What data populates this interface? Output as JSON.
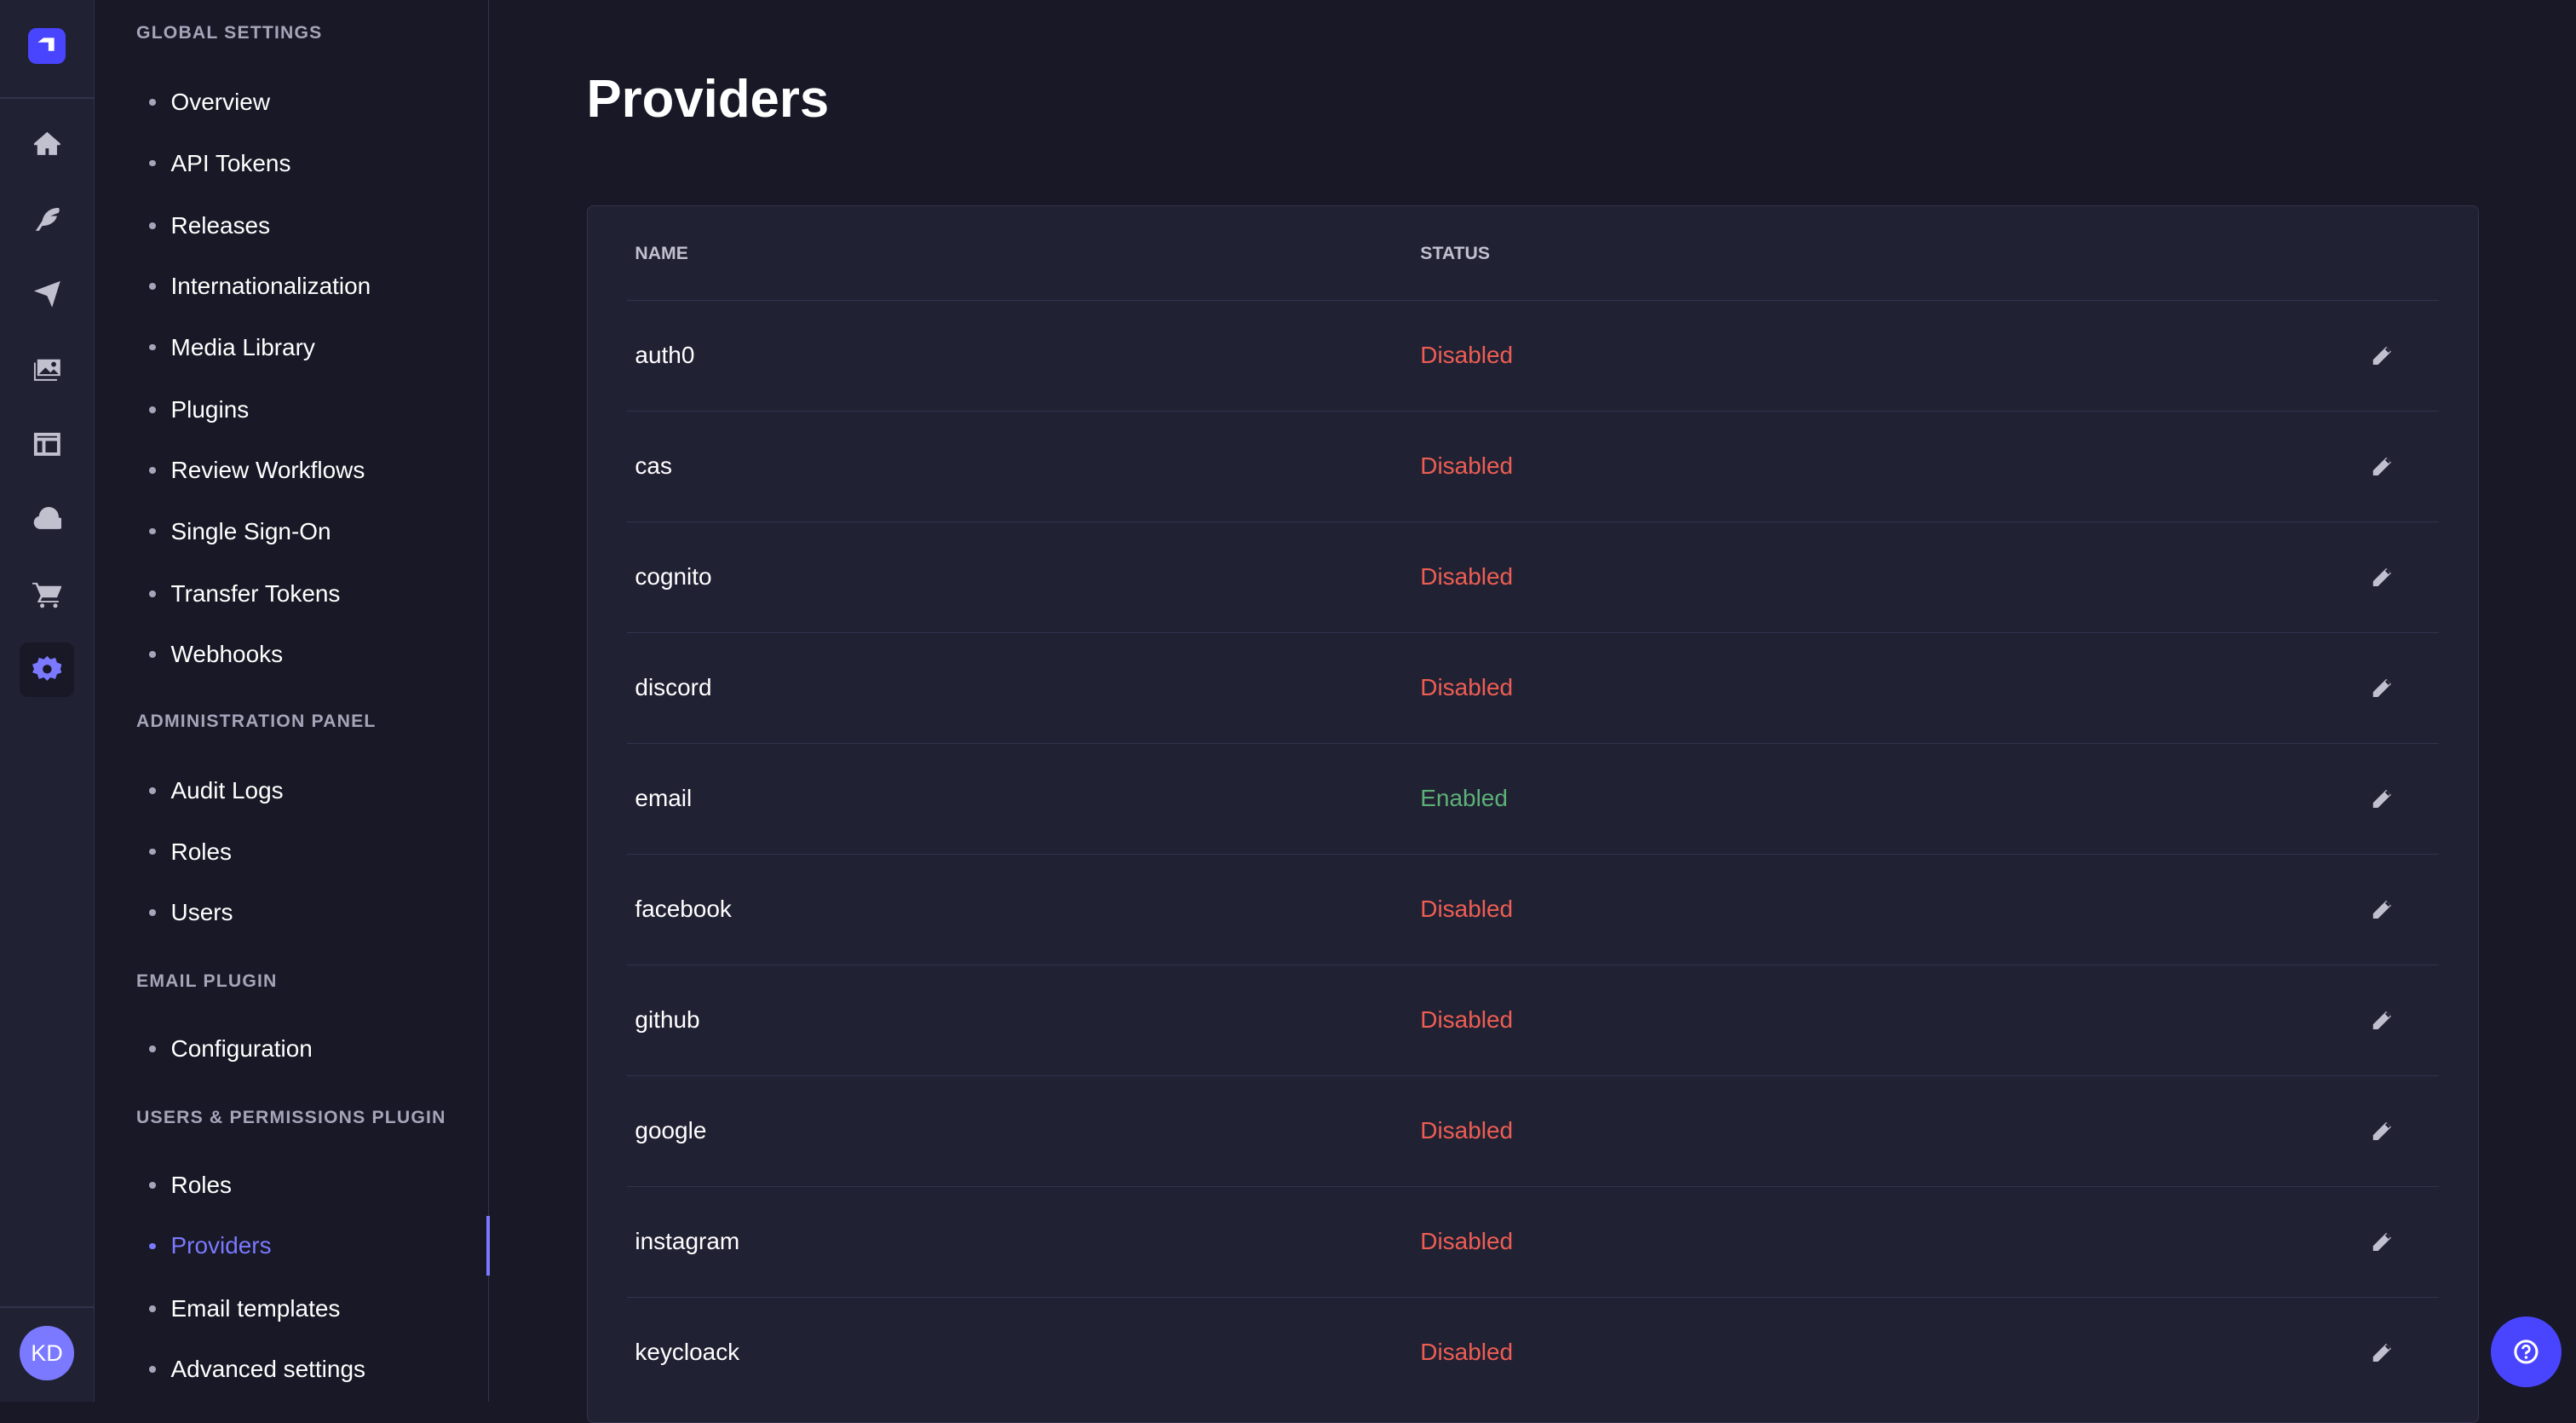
{
  "colors": {
    "accent": "#7b79ff",
    "brand": "#4945ff",
    "disabled": "#ee5e52",
    "enabled": "#5cb176"
  },
  "rail": {
    "icons": [
      "home-icon",
      "feather-icon",
      "paper-plane-icon",
      "images-icon",
      "layout-icon",
      "cloud-icon",
      "cart-icon",
      "gear-icon"
    ],
    "avatar": "KD"
  },
  "subnav": {
    "sections": [
      {
        "title": "GLOBAL SETTINGS",
        "items": [
          "Overview",
          "API Tokens",
          "Releases",
          "Internationalization",
          "Media Library",
          "Plugins",
          "Review Workflows",
          "Single Sign-On",
          "Transfer Tokens",
          "Webhooks"
        ]
      },
      {
        "title": "ADMINISTRATION PANEL",
        "items": [
          "Audit Logs",
          "Roles",
          "Users"
        ]
      },
      {
        "title": "EMAIL PLUGIN",
        "items": [
          "Configuration"
        ]
      },
      {
        "title": "USERS & PERMISSIONS PLUGIN",
        "items": [
          "Roles",
          "Providers",
          "Email templates",
          "Advanced settings"
        ]
      }
    ],
    "active": "Providers"
  },
  "page": {
    "title": "Providers"
  },
  "table": {
    "headers": [
      "NAME",
      "STATUS"
    ],
    "rows": [
      {
        "name": "auth0",
        "status": "Disabled"
      },
      {
        "name": "cas",
        "status": "Disabled"
      },
      {
        "name": "cognito",
        "status": "Disabled"
      },
      {
        "name": "discord",
        "status": "Disabled"
      },
      {
        "name": "email",
        "status": "Enabled"
      },
      {
        "name": "facebook",
        "status": "Disabled"
      },
      {
        "name": "github",
        "status": "Disabled"
      },
      {
        "name": "google",
        "status": "Disabled"
      },
      {
        "name": "instagram",
        "status": "Disabled"
      },
      {
        "name": "keycloack",
        "status": "Disabled"
      }
    ]
  }
}
